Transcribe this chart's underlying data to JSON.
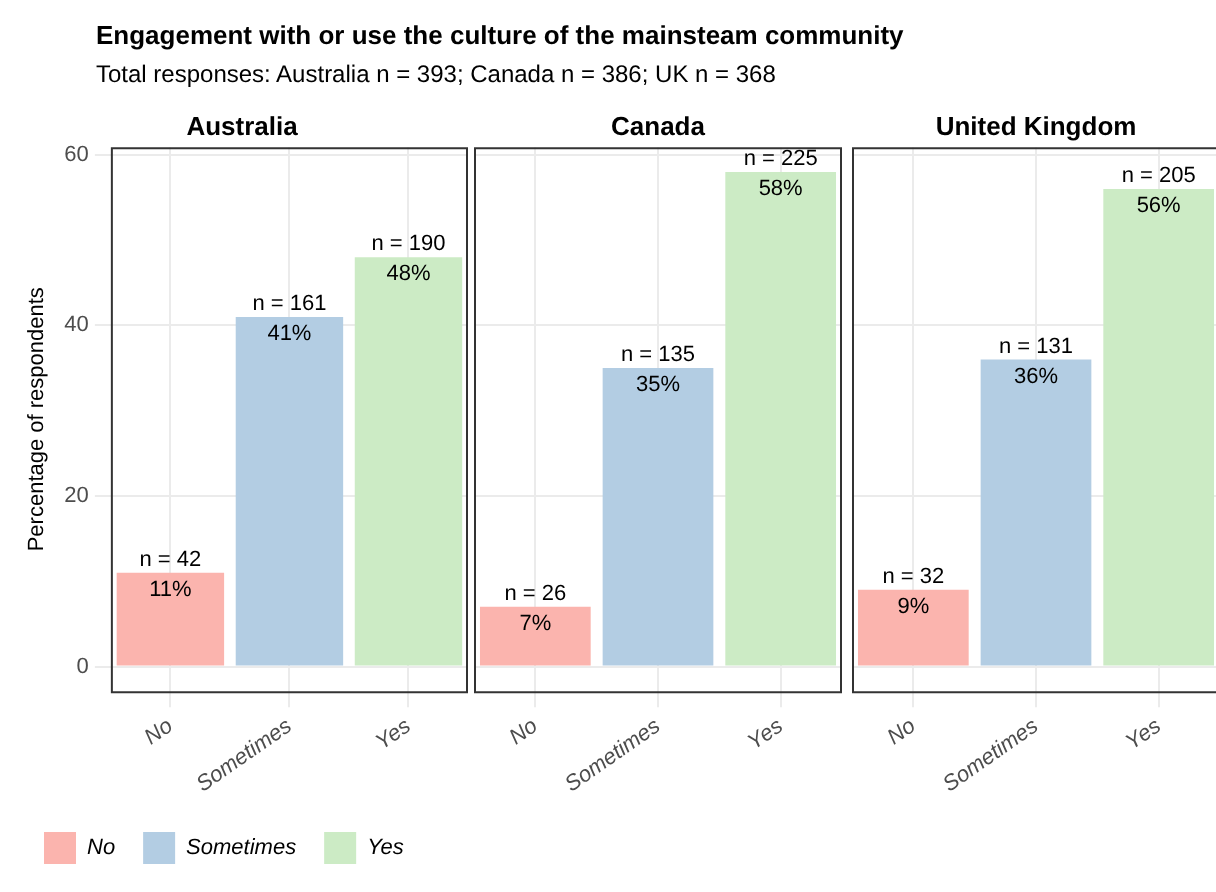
{
  "chart_data": [
    {
      "type": "bar",
      "title": "Australia",
      "ylabel": "Percentage of respondents",
      "annotations": [
        "Engagement with or use the culture of the mainsteam community",
        "Total responses: Australia n = 393; Canada n = 386; UK n = 368",
        {
          "text": "n = 42",
          "x": "No",
          "y": 11
        },
        {
          "text": "n = 161",
          "x": "Sometimes",
          "y": 41
        },
        {
          "text": "n = 190",
          "x": "Yes",
          "y": 48
        }
      ],
      "categories": [
        "No",
        "Sometimes",
        "Yes"
      ],
      "series": [
        {
          "name": "No",
          "color": "#fbb4ae",
          "values": [
            11,
            null,
            null
          ],
          "value_labels": [
            "11%",
            null,
            null
          ]
        },
        {
          "name": "Sometimes",
          "color": "#b3cde3",
          "values": [
            null,
            41,
            null
          ],
          "value_labels": [
            null,
            "41%",
            null
          ]
        },
        {
          "name": "Yes",
          "color": "#ccebc5",
          "values": [
            null,
            null,
            48
          ],
          "value_labels": [
            null,
            null,
            "48%"
          ]
        }
      ],
      "ylim": [
        -2.9,
        60.9
      ],
      "yticks": [
        0,
        20,
        40,
        60
      ],
      "grid": true,
      "legend": "bottom left"
    },
    {
      "type": "bar",
      "title": "Canada",
      "annotations": [
        {
          "text": "n = 26",
          "x": "No",
          "y": 7
        },
        {
          "text": "n = 135",
          "x": "Sometimes",
          "y": 35
        },
        {
          "text": "n = 225",
          "x": "Yes",
          "y": 58
        }
      ],
      "categories": [
        "No",
        "Sometimes",
        "Yes"
      ],
      "series": [
        {
          "color": "#fbb4ae",
          "values": [
            7,
            null,
            null
          ],
          "value_labels": [
            "7%",
            null,
            null
          ]
        },
        {
          "color": "#b3cde3",
          "values": [
            null,
            35,
            null
          ],
          "value_labels": [
            null,
            "35%",
            null
          ]
        },
        {
          "color": "#ccebc5",
          "values": [
            null,
            null,
            58
          ],
          "value_labels": [
            null,
            null,
            "58%"
          ]
        }
      ],
      "ylim": [
        -2.9,
        60.9
      ],
      "yticks": [
        0,
        20,
        40,
        60
      ],
      "grid": true,
      "tick_labels": "x"
    },
    {
      "type": "bar",
      "title": "United Kingdom",
      "annotations": [
        {
          "text": "n = 32",
          "x": "No",
          "y": 9
        },
        {
          "text": "n = 131",
          "x": "Sometimes",
          "y": 36
        },
        {
          "text": "n = 205",
          "x": "Yes",
          "y": 56
        }
      ],
      "categories": [
        "No",
        "Sometimes",
        "Yes"
      ],
      "series": [
        {
          "color": "#fbb4ae",
          "values": [
            9,
            null,
            null
          ],
          "value_labels": [
            "9%",
            null,
            null
          ]
        },
        {
          "color": "#b3cde3",
          "values": [
            null,
            36,
            null
          ],
          "value_labels": [
            null,
            "36%",
            null
          ]
        },
        {
          "color": "#ccebc5",
          "values": [
            null,
            null,
            56
          ],
          "value_labels": [
            null,
            null,
            "56%"
          ]
        }
      ],
      "ylim": [
        -2.9,
        60.9
      ],
      "yticks": [
        0,
        20,
        40,
        60
      ],
      "grid": true,
      "tick_labels": "x"
    }
  ]
}
